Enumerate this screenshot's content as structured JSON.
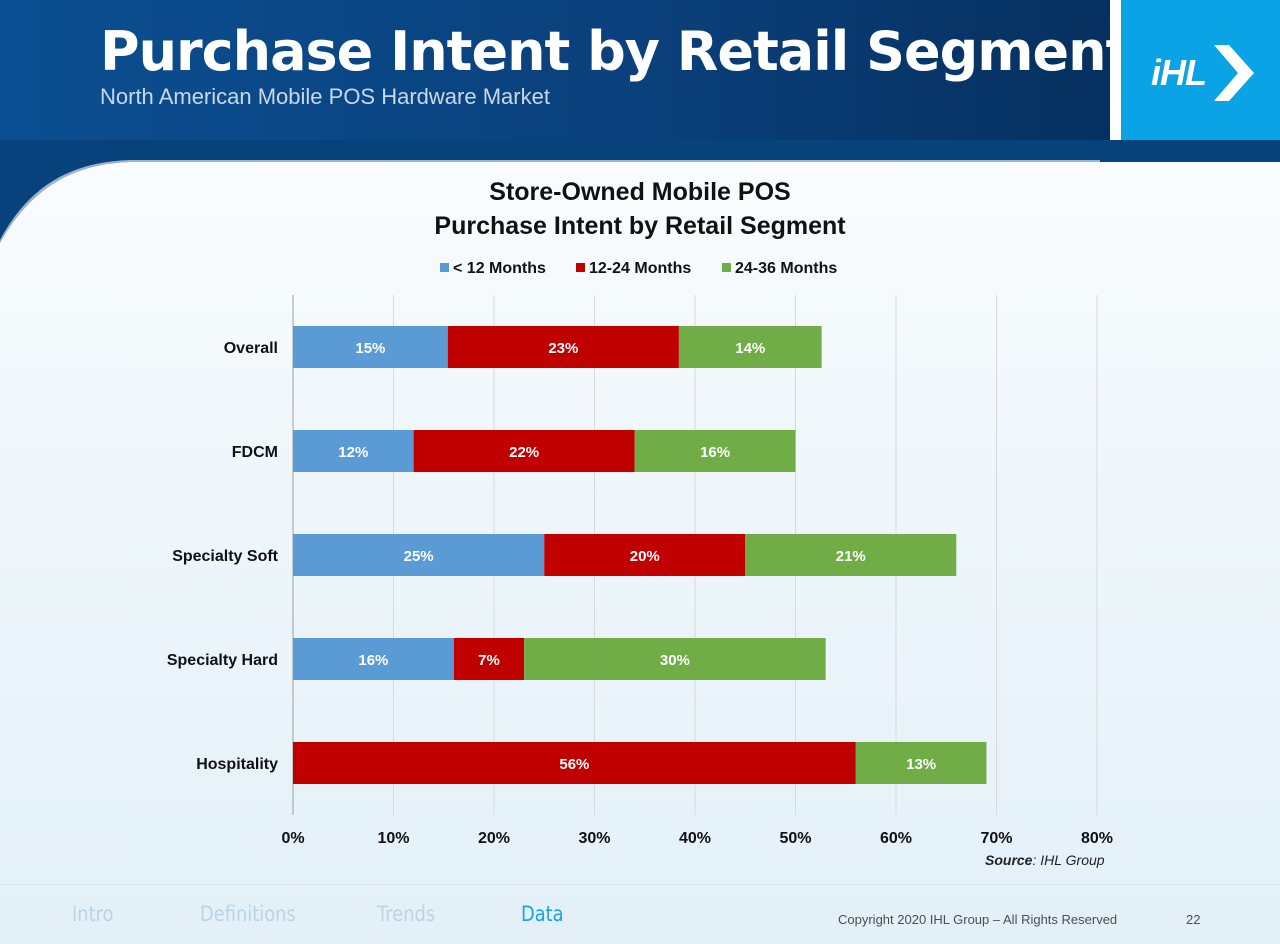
{
  "slide": {
    "title": "Purchase Intent by Retail Segment",
    "subtitle": "North American Mobile POS Hardware Market",
    "logo": "iHL",
    "copyright": "Copyright 2020 IHL Group – All Rights Reserved",
    "page_number": "22",
    "source_label": "Source",
    "source_text": ": IHL Group"
  },
  "nav": {
    "items": [
      {
        "label": "Intro",
        "active": false
      },
      {
        "label": "Definitions",
        "active": false
      },
      {
        "label": "Trends",
        "active": false
      },
      {
        "label": "Data",
        "active": true
      }
    ]
  },
  "colors": {
    "header": "#0a3f7a",
    "logo_bg": "#0aa3e6",
    "series_1": "#5b9bd5",
    "series_2": "#c00000",
    "series_3": "#70ad47"
  },
  "chart_data": {
    "type": "bar",
    "orientation": "horizontal",
    "stacked": true,
    "title": "Store-Owned Mobile POS",
    "subtitle": "Purchase Intent by Retail Segment",
    "categories": [
      "Overall",
      "FDCM",
      "Specialty Soft",
      "Specialty Hard",
      "Hospitality"
    ],
    "series": [
      {
        "name": "< 12 Months",
        "color": "#5b9bd5",
        "values": [
          15.4,
          12,
          25,
          16,
          0
        ]
      },
      {
        "name": "12-24 Months",
        "color": "#c00000",
        "values": [
          23,
          22,
          20,
          7,
          56
        ]
      },
      {
        "name": "24-36 Months",
        "color": "#70ad47",
        "values": [
          14.2,
          16,
          21,
          30,
          13
        ]
      }
    ],
    "data_labels": [
      [
        "15%",
        "12%",
        "25%",
        "16%",
        ""
      ],
      [
        "23%",
        "22%",
        "20%",
        "7%",
        "56%"
      ],
      [
        "14%",
        "16%",
        "21%",
        "30%",
        "13%"
      ]
    ],
    "x_ticks": [
      "0%",
      "10%",
      "20%",
      "30%",
      "40%",
      "50%",
      "60%",
      "70%",
      "80%"
    ],
    "xlim": [
      0,
      80
    ],
    "grid": true,
    "legend": "top"
  }
}
